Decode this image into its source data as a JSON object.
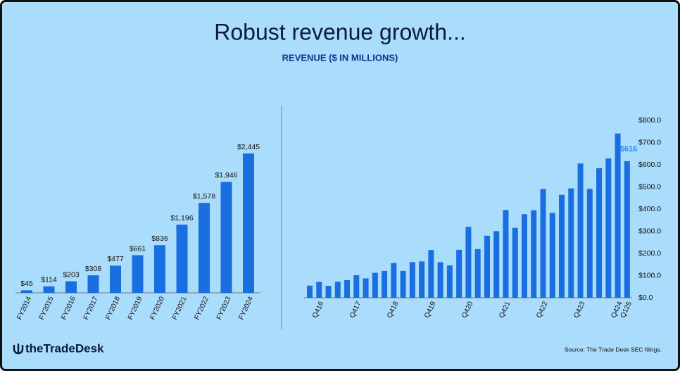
{
  "title": "Robust revenue growth...",
  "subtitle": "REVENUE ($ IN MILLIONS)",
  "logo": "theTradeDesk",
  "source": "Source: The Trade Desk SEC filings.",
  "chart_data": [
    {
      "type": "bar",
      "color": "#1a6fe0",
      "categories": [
        "FY2014",
        "FY2015",
        "FY2016",
        "FY2017",
        "FY2018",
        "FY2019",
        "FY2020",
        "FY2021",
        "FY2022",
        "FY2023",
        "FY2024"
      ],
      "values": [
        45,
        114,
        203,
        308,
        477,
        661,
        836,
        1196,
        1578,
        1946,
        2445
      ],
      "value_labels": [
        "$45",
        "$114",
        "$203",
        "$308",
        "$477",
        "$661",
        "$836",
        "$1,196",
        "$1,578",
        "$1,946",
        "$2,445"
      ]
    },
    {
      "type": "bar",
      "color": "#1a6fe0",
      "label_color": "#2b8cf2",
      "categories": [
        null,
        "Q416",
        null,
        null,
        null,
        "Q417",
        null,
        null,
        null,
        "Q418",
        null,
        null,
        null,
        "Q419",
        null,
        null,
        null,
        "Q420",
        null,
        null,
        null,
        "Q421",
        null,
        null,
        null,
        "Q422",
        null,
        null,
        null,
        "Q423",
        null,
        null,
        null,
        "Q424",
        "Q125"
      ],
      "values": [
        55,
        72,
        53.8,
        72.6,
        79.6,
        102,
        87.4,
        112.6,
        120.9,
        156.4,
        121.2,
        160.9,
        164,
        215.4,
        160.7,
        145.9,
        216.1,
        319.9,
        219.8,
        280,
        300.6,
        395.6,
        315.3,
        376.9,
        394.8,
        490.7,
        382.8,
        464.3,
        493.3,
        605.8,
        491.3,
        584.5,
        628,
        741,
        616
      ],
      "value_labels": [
        null,
        null,
        null,
        null,
        null,
        null,
        null,
        null,
        null,
        null,
        null,
        null,
        null,
        null,
        null,
        null,
        null,
        null,
        null,
        null,
        null,
        null,
        null,
        null,
        null,
        null,
        null,
        null,
        null,
        null,
        null,
        null,
        null,
        null,
        "$616"
      ],
      "ylim": [
        0,
        800
      ],
      "yticks": [
        {
          "value": 0,
          "label": "$0.0"
        },
        {
          "value": 100,
          "label": "$100.0"
        },
        {
          "value": 200,
          "label": "$200.0"
        },
        {
          "value": 300,
          "label": "$300.0"
        },
        {
          "value": 400,
          "label": "$400.0"
        },
        {
          "value": 500,
          "label": "$500.0"
        },
        {
          "value": 600,
          "label": "$600.0"
        },
        {
          "value": 700,
          "label": "$700.0"
        },
        {
          "value": 800,
          "label": "$800.0"
        }
      ],
      "y_axis_side": "right"
    }
  ]
}
